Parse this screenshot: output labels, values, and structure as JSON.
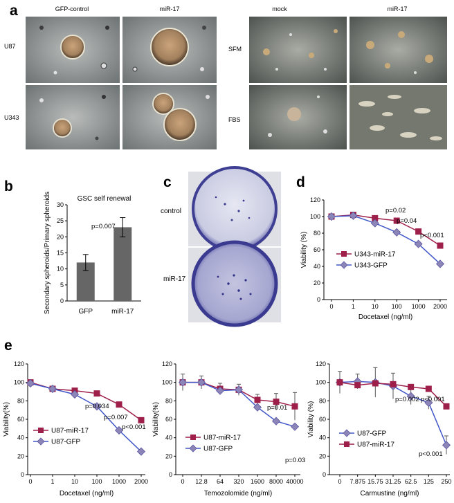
{
  "panels": {
    "a": "a",
    "b": "b",
    "c": "c",
    "d": "d",
    "e": "e"
  },
  "micro_left": {
    "col_labels": [
      "GFP-control",
      "miR-17"
    ],
    "row_labels": [
      "U87",
      "U343"
    ]
  },
  "micro_right": {
    "col_labels": [
      "mock",
      "miR-17"
    ],
    "row_labels": [
      "SFM",
      "FBS"
    ]
  },
  "plate": {
    "labels": [
      "control",
      "miR-17"
    ]
  },
  "colors": {
    "mir17": "#9e1f4a",
    "gfp": "#4055c8",
    "bar": "#666666"
  },
  "chart_data": [
    {
      "id": "b",
      "type": "bar",
      "title": "GSC self renewal",
      "categories": [
        "GFP",
        "miR-17"
      ],
      "values": [
        12,
        23
      ],
      "errors": [
        2.5,
        3
      ],
      "ylabel": "Secondary spheroids/Primary spheroids",
      "xlabel": "",
      "ylim": [
        0,
        30
      ],
      "yticks": [
        "0",
        "5",
        "10",
        "15",
        "20",
        "25",
        "30"
      ],
      "annotations": [
        "p=0.007"
      ]
    },
    {
      "id": "d",
      "type": "line",
      "xlabel": "Docetaxel (ng/ml)",
      "ylabel": "Viability (%)",
      "categories": [
        "0",
        "1",
        "10",
        "100",
        "1000",
        "2000"
      ],
      "ylim": [
        0,
        120
      ],
      "yticks": [
        "0",
        "20",
        "40",
        "60",
        "80",
        "100",
        "120"
      ],
      "series": [
        {
          "name": "U343-miR-17",
          "values": [
            100,
            102,
            98,
            95,
            82,
            65
          ]
        },
        {
          "name": "U343-GFP",
          "values": [
            100,
            101,
            92,
            81,
            67,
            43
          ]
        }
      ],
      "annotations": [
        "p=0.02",
        "p=0.04",
        "p<0.001"
      ]
    },
    {
      "id": "e1",
      "type": "line",
      "xlabel": "Docetaxel (ng/ml)",
      "ylabel": "Viability(%)",
      "categories": [
        "0",
        "1",
        "10",
        "100",
        "1000",
        "2000"
      ],
      "ylim": [
        0,
        120
      ],
      "yticks": [
        "0",
        "20",
        "40",
        "60",
        "80",
        "100",
        "120"
      ],
      "series": [
        {
          "name": "U87-miR-17",
          "values": [
            100,
            93,
            91,
            88,
            76,
            59
          ]
        },
        {
          "name": "U87-GFP",
          "values": [
            99,
            93,
            87,
            74,
            48,
            25
          ]
        }
      ],
      "annotations": [
        "p=0.034",
        "p=0.007",
        "p<0.001"
      ]
    },
    {
      "id": "e2",
      "type": "line",
      "xlabel": "Temozolomide (ng/ml)",
      "ylabel": "Viability(%)",
      "categories": [
        "0",
        "12.8",
        "64",
        "320",
        "1600",
        "8000",
        "40000"
      ],
      "ylim": [
        0,
        120
      ],
      "yticks": [
        "0",
        "20",
        "40",
        "60",
        "80",
        "100",
        "120"
      ],
      "series": [
        {
          "name": "U87-miR-17",
          "values": [
            100,
            100,
            93,
            92,
            81,
            79,
            74
          ]
        },
        {
          "name": "U87-GFP",
          "values": [
            100,
            100,
            91,
            92,
            73,
            58,
            52
          ]
        }
      ],
      "errors": [
        9,
        7,
        6,
        6,
        6,
        9,
        15
      ],
      "annotations": [
        "p=0.01",
        "p=0.03"
      ]
    },
    {
      "id": "e3",
      "type": "line",
      "xlabel": "Carmustine (ng/ml)",
      "ylabel": "Viability (%)",
      "categories": [
        "0",
        "7.875",
        "15.75",
        "31.25",
        "62.5",
        "125",
        "250"
      ],
      "ylim": [
        0,
        120
      ],
      "yticks": [
        "0",
        "20",
        "40",
        "60",
        "80",
        "100",
        "120"
      ],
      "series": [
        {
          "name": "U87-GFP",
          "values": [
            100,
            101,
            100,
            96,
            85,
            78,
            32
          ]
        },
        {
          "name": "U87-miR-17",
          "values": [
            100,
            97,
            99,
            98,
            95,
            93,
            74
          ]
        }
      ],
      "errors": [
        12,
        8,
        16,
        14,
        9,
        7,
        10
      ],
      "annotations": [
        "p=0.002",
        "p<0.001",
        "p<0.001"
      ]
    }
  ]
}
